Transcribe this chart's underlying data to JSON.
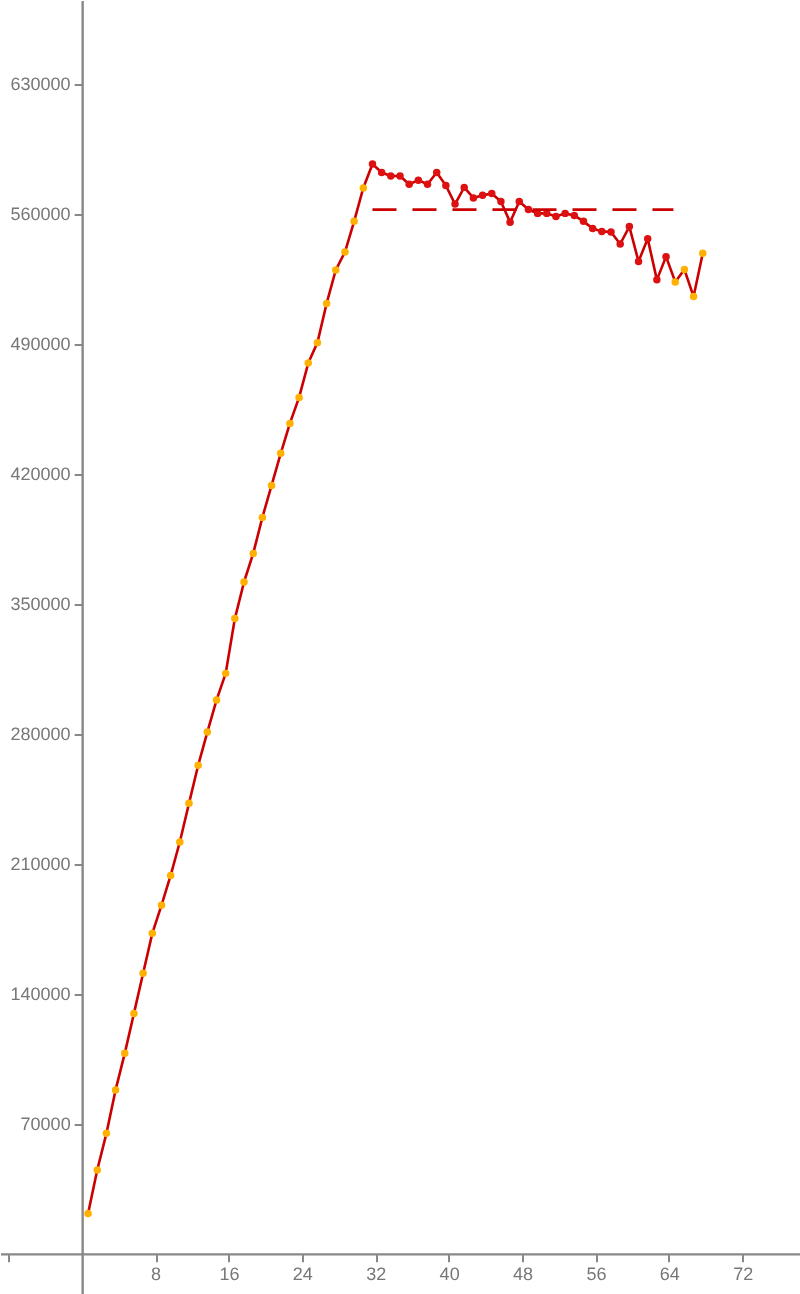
{
  "chart_data": {
    "type": "line",
    "xlim": [
      -8.9,
      78.3
    ],
    "ylim": [
      -21900,
      674900
    ],
    "xticks": [
      {
        "value": -8,
        "label": null
      },
      8,
      16,
      24,
      32,
      40,
      48,
      56,
      64,
      72
    ],
    "yticks": [
      70000,
      140000,
      210000,
      280000,
      350000,
      420000,
      490000,
      560000,
      630000
    ],
    "series": [
      {
        "color": "#cc0000",
        "marker": "circle",
        "line_style": "solid",
        "x": [
          0.7,
          1.7,
          2.7,
          3.7,
          4.7,
          5.7,
          6.7,
          7.7,
          8.7,
          9.7,
          10.7,
          11.7,
          12.7,
          13.7,
          14.7,
          15.7,
          16.7,
          17.7,
          18.7,
          19.7,
          20.7,
          21.7,
          22.7,
          23.7,
          24.7,
          25.7,
          26.7,
          27.7,
          28.7,
          29.7,
          30.7,
          31.7,
          32.7,
          33.7,
          34.7,
          35.7,
          36.7,
          37.7,
          38.7,
          39.7,
          40.7,
          41.7,
          42.7,
          43.7,
          44.7,
          45.7,
          46.7,
          47.7,
          48.7,
          49.7,
          50.7,
          51.7,
          52.7,
          53.7,
          54.7,
          55.7,
          56.7,
          57.7,
          58.7,
          59.7,
          60.7,
          61.7,
          62.7,
          63.7,
          64.7,
          65.7,
          66.7,
          67.7
        ],
        "values": [
          21500,
          44900,
          64600,
          88000,
          107700,
          129200,
          150800,
          172300,
          187400,
          203500,
          221500,
          242300,
          262800,
          280700,
          297900,
          312300,
          341800,
          361500,
          376900,
          396300,
          413500,
          430800,
          446900,
          460900,
          479400,
          490400,
          511500,
          529500,
          539200,
          555700,
          573700,
          586600,
          582000,
          580100,
          580100,
          575700,
          577900,
          575700,
          582000,
          575000,
          565000,
          574000,
          568300,
          569700,
          570700,
          566400,
          555200,
          566400,
          562100,
          560000,
          560000,
          558300,
          560000,
          558900,
          555700,
          551800,
          550300,
          550000,
          543500,
          552900,
          534100,
          546400,
          524200,
          536700,
          523100,
          529800,
          515200,
          538500
        ],
        "colors": [
          "#ffb000",
          "#ffb000",
          "#ffb000",
          "#ffb000",
          "#ffb000",
          "#ffb000",
          "#ffb000",
          "#ffb000",
          "#ffb000",
          "#ffb000",
          "#ffb000",
          "#ffb000",
          "#ffb000",
          "#ffb000",
          "#ffb000",
          "#ffb000",
          "#ffb000",
          "#ffb000",
          "#ffb000",
          "#ffb000",
          "#ffb000",
          "#ffb000",
          "#ffb000",
          "#ffb000",
          "#ffb000",
          "#ffb000",
          "#ffb000",
          "#ffb000",
          "#ffb000",
          "#ffb000",
          "#ffb000",
          "#dd1111",
          "#dd1111",
          "#dd1111",
          "#dd1111",
          "#dd1111",
          "#dd1111",
          "#dd1111",
          "#dd1111",
          "#dd1111",
          "#dd1111",
          "#dd1111",
          "#dd1111",
          "#dd1111",
          "#dd1111",
          "#dd1111",
          "#dd1111",
          "#dd1111",
          "#dd1111",
          "#dd1111",
          "#dd1111",
          "#dd1111",
          "#dd1111",
          "#dd1111",
          "#dd1111",
          "#dd1111",
          "#dd1111",
          "#dd1111",
          "#dd1111",
          "#dd1111",
          "#dd1111",
          "#dd1111",
          "#dd1111",
          "#dd1111",
          "#ffb000",
          "#ffb000",
          "#ffb000",
          "#ffb000"
        ]
      },
      {
        "color": "#cc0000",
        "marker": "none",
        "line_style": "dashed",
        "x": [
          31.7,
          64.5
        ],
        "values": [
          562000,
          562000
        ]
      }
    ]
  }
}
